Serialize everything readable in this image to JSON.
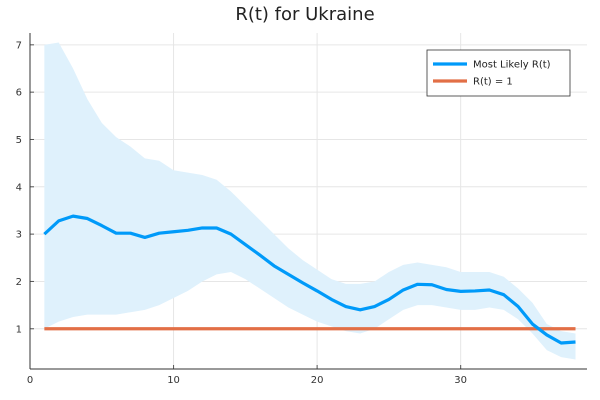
{
  "chart_data": {
    "type": "line",
    "title": "R(t) for Ukraine",
    "xlabel": "",
    "ylabel": "",
    "xlim": [
      0,
      38.8
    ],
    "ylim": [
      0.15,
      7.25
    ],
    "xticks": [
      0,
      10,
      20,
      30
    ],
    "yticks": [
      1,
      2,
      3,
      4,
      5,
      6,
      7
    ],
    "grid": true,
    "legend_position": "top-right",
    "x": [
      1,
      2,
      3,
      4,
      5,
      6,
      7,
      8,
      9,
      10,
      11,
      12,
      13,
      14,
      15,
      16,
      17,
      18,
      19,
      20,
      21,
      22,
      23,
      24,
      25,
      26,
      27,
      28,
      29,
      30,
      31,
      32,
      33,
      34,
      35,
      36,
      37,
      38
    ],
    "band": {
      "color": "#dff1fc",
      "upper": [
        7.0,
        7.05,
        6.5,
        5.85,
        5.35,
        5.05,
        4.85,
        4.6,
        4.55,
        4.35,
        4.3,
        4.25,
        4.15,
        3.9,
        3.6,
        3.3,
        3.0,
        2.7,
        2.45,
        2.25,
        2.05,
        1.95,
        1.95,
        2.0,
        2.2,
        2.35,
        2.4,
        2.35,
        2.3,
        2.2,
        2.2,
        2.2,
        2.1,
        1.85,
        1.55,
        1.1,
        0.95,
        0.9
      ],
      "lower": [
        1.0,
        1.15,
        1.25,
        1.3,
        1.3,
        1.3,
        1.35,
        1.4,
        1.5,
        1.65,
        1.8,
        2.0,
        2.15,
        2.2,
        2.05,
        1.85,
        1.65,
        1.45,
        1.3,
        1.15,
        1.05,
        0.95,
        0.9,
        1.0,
        1.2,
        1.4,
        1.5,
        1.5,
        1.45,
        1.4,
        1.4,
        1.45,
        1.4,
        1.2,
        0.9,
        0.55,
        0.4,
        0.35
      ]
    },
    "series": [
      {
        "name": "Most Likely R(t)",
        "color": "#009af9",
        "values": [
          3.0,
          3.28,
          3.38,
          3.33,
          3.18,
          3.02,
          3.02,
          2.93,
          3.02,
          3.05,
          3.08,
          3.13,
          3.13,
          3.0,
          2.78,
          2.56,
          2.33,
          2.15,
          1.97,
          1.8,
          1.62,
          1.47,
          1.4,
          1.47,
          1.62,
          1.82,
          1.94,
          1.93,
          1.83,
          1.79,
          1.8,
          1.82,
          1.72,
          1.47,
          1.1,
          0.87,
          0.7,
          0.72
        ]
      },
      {
        "name": "R(t) = 1",
        "color": "#e26f46",
        "values": [
          1,
          1,
          1,
          1,
          1,
          1,
          1,
          1,
          1,
          1,
          1,
          1,
          1,
          1,
          1,
          1,
          1,
          1,
          1,
          1,
          1,
          1,
          1,
          1,
          1,
          1,
          1,
          1,
          1,
          1,
          1,
          1,
          1,
          1,
          1,
          1,
          1,
          1
        ]
      }
    ]
  }
}
